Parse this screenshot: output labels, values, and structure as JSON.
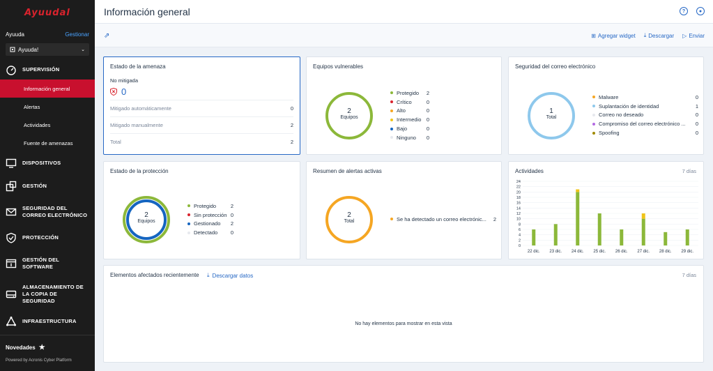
{
  "brand": {
    "logo": "Ayuudal"
  },
  "account": {
    "name": "Ayuuda",
    "manage": "Gestionar",
    "tenant": "Ayuuda!"
  },
  "nav": {
    "supervision": "SUPERVISIÓN",
    "items": [
      "Información general",
      "Alertas",
      "Actividades",
      "Fuente de amenazas"
    ],
    "devices": "DISPOSITIVOS",
    "management": "GESTIÓN",
    "email_security": "SEGURIDAD DEL CORREO ELECTRÓNICO",
    "protection": "PROTECCIÓN",
    "software": "GESTIÓN DEL SOFTWARE",
    "backup_storage": "ALMACENAMIENTO DE LA COPIA DE SEGURIDAD",
    "infrastructure": "INFRAESTRUCTURA"
  },
  "footer": {
    "news": "Novedades",
    "powered": "Powered by Acronis Cyber Platform"
  },
  "header": {
    "title": "Información general"
  },
  "toolbar": {
    "add_widget": "Agregar widget",
    "download": "Descargar",
    "send": "Enviar"
  },
  "threat": {
    "title": "Estado de la amenaza",
    "subtitle": "No mitigada",
    "count": "0",
    "rows": [
      {
        "label": "Mitigado automáticamente",
        "value": "0"
      },
      {
        "label": "Mitigado manualmente",
        "value": "2"
      },
      {
        "label": "Total",
        "value": "2"
      }
    ]
  },
  "vulnerable": {
    "title": "Equipos vulnerables",
    "center_num": "2",
    "center_label": "Equipos",
    "legend": [
      {
        "label": "Protegido",
        "value": "2",
        "color": "#8cb83a"
      },
      {
        "label": "Crítico",
        "value": "0",
        "color": "#d9232d"
      },
      {
        "label": "Alto",
        "value": "0",
        "color": "#f5a623"
      },
      {
        "label": "Intermedio",
        "value": "0",
        "color": "#f0c419"
      },
      {
        "label": "Bajo",
        "value": "0",
        "color": "#1565c0"
      },
      {
        "label": "Ninguno",
        "value": "0",
        "color": "#e6e9ee"
      }
    ]
  },
  "email": {
    "title": "Seguridad del correo electrónico",
    "center_num": "1",
    "center_label": "Total",
    "legend": [
      {
        "label": "Malware",
        "value": "0",
        "color": "#f5a623"
      },
      {
        "label": "Suplantación de identidad",
        "value": "1",
        "color": "#8ec8ec"
      },
      {
        "label": "Correo no deseado",
        "value": "0",
        "color": "#e6e9ee"
      },
      {
        "label": "Compromiso del correo electrónico ...",
        "value": "0",
        "color": "#b36ae2"
      },
      {
        "label": "Spoofing",
        "value": "0",
        "color": "#a08a00"
      }
    ]
  },
  "protection": {
    "title": "Estado de la protección",
    "center_num": "2",
    "center_label": "Equipos",
    "legend": [
      {
        "label": "Protegido",
        "value": "2",
        "color": "#8cb83a"
      },
      {
        "label": "Sin protección",
        "value": "0",
        "color": "#d9232d"
      },
      {
        "label": "Gestionado",
        "value": "2",
        "color": "#1565c0"
      },
      {
        "label": "Detectado",
        "value": "0",
        "color": "#e6e9ee"
      }
    ]
  },
  "alerts": {
    "title": "Resumen de alertas activas",
    "center_num": "2",
    "center_label": "Total",
    "legend": [
      {
        "label": "Se ha detectado un correo electrónic...",
        "value": "2",
        "color": "#f5a623"
      }
    ]
  },
  "activities": {
    "title": "Actividades",
    "days": "7 días"
  },
  "recent": {
    "title": "Elementos afectados recientemente",
    "download": "Descargar datos",
    "days": "7 días",
    "empty": "No hay elementos para mostrar en esta vista"
  },
  "chart_data": {
    "type": "bar",
    "title": "Actividades",
    "categories": [
      "22 dic.",
      "23 dic.",
      "24 dic.",
      "25 dic.",
      "26 dic.",
      "27 dic.",
      "28 dic.",
      "29 dic."
    ],
    "series": [
      {
        "values": [
          6,
          8,
          20,
          12,
          6,
          10,
          5,
          6
        ],
        "color": "#8cb83a"
      },
      {
        "values": [
          0,
          0,
          1,
          0,
          0,
          2,
          0,
          0
        ],
        "color": "#f0c419"
      }
    ],
    "yticks": [
      0,
      2,
      4,
      6,
      8,
      10,
      12,
      14,
      16,
      18,
      20,
      22,
      24
    ],
    "ylim": [
      0,
      24
    ],
    "stacked": true,
    "grid": true
  }
}
